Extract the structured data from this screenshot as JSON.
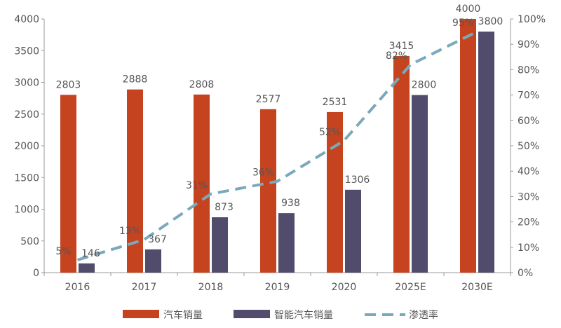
{
  "colors": {
    "car_sales": "#C6431F",
    "smart_sales": "#514C6B",
    "penetration": "#7AA9BC",
    "axis": "#9a9a9a",
    "text": "#555555"
  },
  "chart_data": {
    "type": "bar",
    "categories": [
      "2016",
      "2017",
      "2018",
      "2019",
      "2020",
      "2025E",
      "2030E"
    ],
    "series": [
      {
        "name": "汽车销量",
        "kind": "bar",
        "axis": "left",
        "values": [
          2803,
          2888,
          2808,
          2577,
          2531,
          3415,
          4000
        ],
        "labels": [
          "2803",
          "2888",
          "2808",
          "2577",
          "2531",
          "3415",
          "4000"
        ]
      },
      {
        "name": "智能汽车销量",
        "kind": "bar",
        "axis": "left",
        "values": [
          146,
          367,
          873,
          938,
          1306,
          2800,
          3800
        ],
        "labels": [
          "146",
          "367",
          "873",
          "938",
          "1306",
          "2800",
          "3800"
        ]
      },
      {
        "name": "渗透率",
        "kind": "line",
        "style": "dashed",
        "axis": "right",
        "values": [
          5,
          13,
          31,
          36,
          52,
          82,
          95
        ],
        "labels": [
          "5%",
          "13%",
          "31%",
          "36%",
          "52%",
          "82%",
          "95%"
        ]
      }
    ],
    "y_left": {
      "min": 0,
      "max": 4000,
      "ticks": [
        "0",
        "500",
        "1000",
        "1500",
        "2000",
        "2500",
        "3000",
        "3500",
        "4000"
      ]
    },
    "y_right": {
      "min": 0,
      "max": 100,
      "ticks": [
        "0%",
        "10%",
        "20%",
        "30%",
        "40%",
        "50%",
        "60%",
        "70%",
        "80%",
        "90%",
        "100%"
      ]
    },
    "legend_position": "bottom",
    "grid": false
  }
}
